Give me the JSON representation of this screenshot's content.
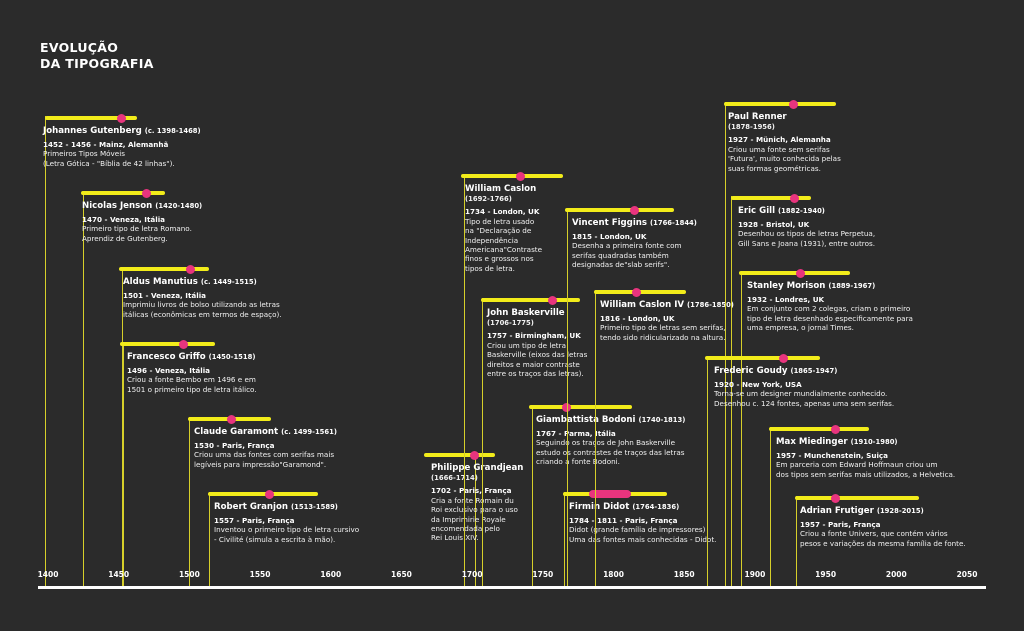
{
  "title": {
    "line1": "EVOLUÇÃO",
    "line2": "DA TIPOGRAFIA"
  },
  "axis": {
    "start": 1395,
    "end": 2060,
    "ticks": [
      1400,
      1450,
      1500,
      1550,
      1600,
      1650,
      1700,
      1750,
      1800,
      1850,
      1900,
      1950,
      2000,
      2050
    ]
  },
  "colors": {
    "background": "#2b2b2b",
    "bar": "#f2ec1a",
    "marker": "#e8347e",
    "line": "#d6cf2a"
  },
  "people": [
    {
      "name": "Johannes Gutenberg",
      "life": "(c. 1398-1468)",
      "inline": true,
      "bar": [
        1398,
        1463
      ],
      "marker": [
        1452,
        1456
      ],
      "lineYear": 1398,
      "event": "1452 - 1456 - Mainz, Alemanhã",
      "desc": [
        "Primeiros Tipos Móveis",
        "(Letra Gótica - \"Bíblia de 42 linhas\")."
      ]
    },
    {
      "name": "Nicolas Jenson",
      "life": "(1420-1480)",
      "inline": true,
      "bar": [
        1423,
        1483
      ],
      "marker": [
        1470,
        1470
      ],
      "lineYear": 1425,
      "event": "1470 - Veneza, Itália",
      "desc": [
        "Primeiro tipo de letra Romano.",
        "Aprendiz de Gutenberg."
      ]
    },
    {
      "name": "Aldus Manutius",
      "life": "(c. 1449-1515)",
      "inline": true,
      "bar": [
        1450,
        1514
      ],
      "marker": [
        1501,
        1501
      ],
      "lineYear": 1452,
      "event": "1501 - Veneza, Itália",
      "desc": [
        "Imprimiu livros de bolso utilizando as letras",
        "itálicas (econômicas em termos de espaço)."
      ]
    },
    {
      "name": "Francesco Griffo",
      "life": "(1450-1518)",
      "inline": true,
      "bar": [
        1451,
        1518
      ],
      "marker": [
        1496,
        1496
      ],
      "lineYear": 1453,
      "event": "1496 - Veneza, Itália",
      "desc": [
        "Criou a fonte Bembo em 1496 e em",
        "1501 o primeiro tipo de letra itálico."
      ]
    },
    {
      "name": "Claude Garamont",
      "life": "(c. 1499-1561)",
      "inline": true,
      "bar": [
        1499,
        1558
      ],
      "marker": [
        1530,
        1530
      ],
      "lineYear": 1500,
      "event": "1530 - Paris, França",
      "desc": [
        "Criou uma das fontes com serifas mais",
        "legíveis para impressão\"Garamond\"."
      ]
    },
    {
      "name": "Robert Granjon",
      "life": "(1513-1589)",
      "inline": true,
      "bar": [
        1513,
        1591
      ],
      "marker": [
        1557,
        1557
      ],
      "lineYear": 1514,
      "event": "1557 - Paris, França",
      "desc": [
        "Inventou o primeiro tipo de letra cursivo",
        "- Civilité (simula a escrita à mão)."
      ]
    },
    {
      "name": "Philippe Grandjean",
      "life": "(1666-1714)",
      "inline": false,
      "bar": [
        1666,
        1716
      ],
      "marker": [
        1702,
        1702
      ],
      "lineYear": 1702,
      "event": "1702 - Paris, França",
      "desc": [
        "Cria a fonte Romain du",
        "Roi exclusivo para o uso",
        "da Imprimirie Royale",
        "encomendada pelo",
        "Rei Louis XIV."
      ]
    },
    {
      "name": "William Caslon",
      "life": "(1692-1766)",
      "inline": false,
      "bar": [
        1692,
        1764
      ],
      "marker": [
        1734,
        1734
      ],
      "lineYear": 1694,
      "event": "1734 - London, UK",
      "desc": [
        "Tipo de letra usado",
        "na \"Declaração de",
        "Independência",
        "Americana\"Contraste",
        "finos e grossos nos",
        "tipos de letra."
      ]
    },
    {
      "name": "John Baskerville",
      "life": "(1706-1775)",
      "inline": false,
      "bar": [
        1706,
        1776
      ],
      "marker": [
        1757,
        1757
      ],
      "lineYear": 1707,
      "event": "1757 - Birmingham, UK",
      "desc": [
        "Criou um tipo de letra",
        "Baskerville (eixos das letras",
        "direitos e maior contraste",
        "entre os traços das letras)."
      ]
    },
    {
      "name": "Giambattista Bodoni",
      "life": "(1740-1813)",
      "inline": true,
      "bar": [
        1740,
        1813
      ],
      "marker": [
        1767,
        1767
      ],
      "lineYear": 1742,
      "event": "1767 - Parma, Itália",
      "desc": [
        "Seguindo os traços de John Baskerville",
        "estudo os contrastes de traços das letras",
        "criando a fonte Bodoni."
      ]
    },
    {
      "name": "Vincent Figgins",
      "life": "(1766-1844)",
      "inline": true,
      "bar": [
        1766,
        1843
      ],
      "marker": [
        1815,
        1815
      ],
      "lineYear": 1767,
      "event": "1815 - London, UK",
      "desc": [
        "Desenha a primeira fonte com",
        "serifas quadradas também",
        "designadas de\"slab serifs\"."
      ]
    },
    {
      "name": "Firmin Didot",
      "life": "(1764-1836)",
      "inline": true,
      "bar": [
        1764,
        1838
      ],
      "marker": [
        1784,
        1811
      ],
      "lineYear": 1765,
      "event": "1784 - 1811 - Paris, França",
      "desc": [
        "Didot (grande família de impressores)",
        "Uma das fontes mais conhecidas -  Didot."
      ]
    },
    {
      "name": "William Caslon IV",
      "life": "(1786-1850)",
      "inline": true,
      "bar": [
        1786,
        1851
      ],
      "marker": [
        1816,
        1816
      ],
      "lineYear": 1787,
      "event": "1816 - London, UK",
      "desc": [
        "Primeiro tipo de letras sem serifas,",
        "tendo sido ridicularizado na altura."
      ]
    },
    {
      "name": "Paul Renner",
      "life": "(1878-1956)",
      "inline": false,
      "bar": [
        1878,
        1957
      ],
      "marker": [
        1927,
        1927
      ],
      "lineYear": 1879,
      "event": "1927 - Münich, Alemanha",
      "desc": [
        "Criou uma fonte sem serifas",
        "'Futura', muito conhecida pelas",
        "suas formas geométricas."
      ]
    },
    {
      "name": "Eric Gill",
      "life": "(1882-1940)",
      "inline": true,
      "bar": [
        1883,
        1940
      ],
      "marker": [
        1928,
        1928
      ],
      "lineYear": 1883,
      "event": "1928 - Bristol, UK",
      "desc": [
        "Desenhou os tipos de letras Perpetua,",
        "Gill Sans e Joana (1931), entre outros."
      ]
    },
    {
      "name": "Stanley Morison",
      "life": "(1889-1967)",
      "inline": true,
      "bar": [
        1889,
        1967
      ],
      "marker": [
        1932,
        1932
      ],
      "lineYear": 1890,
      "event": "1932 - Londres, UK",
      "desc": [
        "Em conjunto com 2 colegas, criam o primeiro",
        "tipo de letra desenhado especificamente para",
        "uma empresa, o jornal Times."
      ]
    },
    {
      "name": "Frederic Goudy",
      "life": "(1865-1947)",
      "inline": true,
      "bar": [
        1865,
        1946
      ],
      "marker": [
        1920,
        1920
      ],
      "lineYear": 1866,
      "event": "1920 - New York, USA",
      "desc": [
        "Torna-se um designer mundialmente conhecido.",
        "Desenhou c. 124 fontes, apenas uma sem serifas."
      ]
    },
    {
      "name": "Max Miedinger",
      "life": "(1910-1980)",
      "inline": true,
      "bar": [
        1910,
        1981
      ],
      "marker": [
        1957,
        1957
      ],
      "lineYear": 1911,
      "event": "1957 - Munchenstein, Suiça",
      "desc": [
        "Em parceria com Edward Hoffmaun criou um",
        "dos tipos sem serifas mais utilizados, a Helvetica."
      ]
    },
    {
      "name": "Adrian Frutiger",
      "life": "(1928-2015)",
      "inline": true,
      "bar": [
        1928,
        2016
      ],
      "marker": [
        1957,
        1957
      ],
      "lineYear": 1929,
      "event": "1957 - Paris, França",
      "desc": [
        "Criou a fonte Univers, que contém vários",
        "pesos e variações da mesma família de fonte."
      ]
    }
  ]
}
